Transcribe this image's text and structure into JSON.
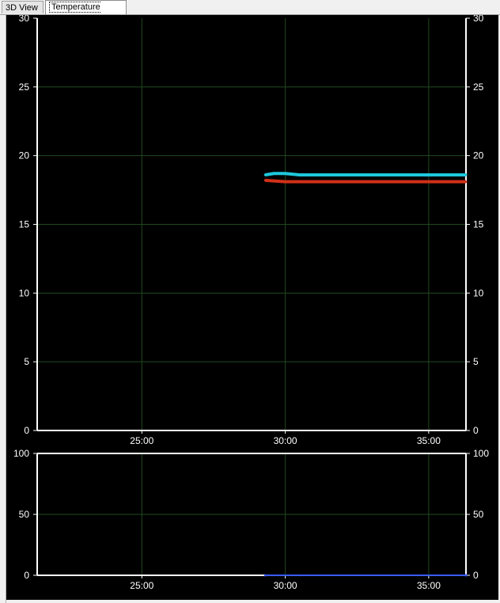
{
  "tabs": [
    {
      "label": "3D View",
      "active": false
    },
    {
      "label": "Temperature Curve",
      "active": true
    }
  ],
  "colors": {
    "background": "#000000",
    "axis": "#ffffff",
    "grid": "#1f4a1f",
    "series_cyan": "#1ec8dc",
    "series_red": "#d03018",
    "series_blue": "#3a5cff"
  },
  "chart_data": [
    {
      "type": "line",
      "title": "",
      "xlabel": "",
      "ylabel": "",
      "x_ticks": [
        "25:00",
        "30:00",
        "35:00"
      ],
      "x_tick_minutes": [
        25,
        30,
        35
      ],
      "xlim_minutes": [
        21.35,
        36.3
      ],
      "ylim": [
        0,
        30
      ],
      "y_ticks": [
        0,
        5,
        10,
        15,
        20,
        25,
        30
      ],
      "grid": true,
      "series": [
        {
          "color": "#1ec8dc",
          "x_minutes": [
            29.3,
            29.6,
            30.0,
            30.5,
            31.0,
            32.0,
            33.0,
            34.0,
            35.0,
            36.3
          ],
          "values": [
            18.6,
            18.7,
            18.7,
            18.6,
            18.6,
            18.6,
            18.6,
            18.6,
            18.6,
            18.6
          ]
        },
        {
          "color": "#d03018",
          "x_minutes": [
            29.3,
            30.0,
            31.0,
            32.0,
            33.0,
            34.0,
            35.0,
            36.3
          ],
          "values": [
            18.2,
            18.1,
            18.1,
            18.1,
            18.1,
            18.1,
            18.1,
            18.1
          ]
        }
      ]
    },
    {
      "type": "line",
      "title": "",
      "xlabel": "",
      "ylabel": "",
      "x_ticks": [
        "25:00",
        "30:00",
        "35:00"
      ],
      "x_tick_minutes": [
        25,
        30,
        35
      ],
      "xlim_minutes": [
        21.35,
        36.3
      ],
      "ylim": [
        0,
        100
      ],
      "y_ticks": [
        0,
        50,
        100
      ],
      "grid": true,
      "series": [
        {
          "color": "#3a5cff",
          "x_minutes": [
            29.3,
            36.3
          ],
          "values": [
            0,
            0
          ]
        }
      ]
    }
  ]
}
